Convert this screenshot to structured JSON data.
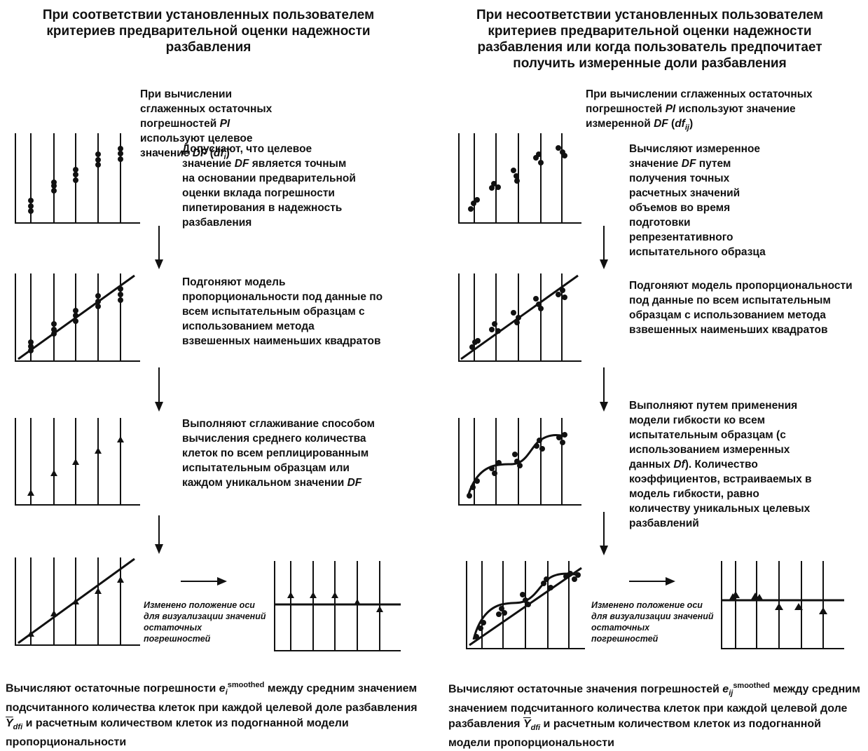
{
  "left": {
    "title": "При соответствии установленных пользователем критериев предварительной оценки надежности разбавления",
    "intro_parts": [
      "При вычислении сглаженных остаточных погрешностей ",
      "PI",
      " используют целевое значение ",
      "DF",
      " (",
      "df",
      "i",
      ")"
    ],
    "step1_parts": [
      "Допускают, что целевое значение ",
      "DF",
      " является точным на основании предварительной оценки вклада погрешности пипетирования в надежность разбавления"
    ],
    "step2": "Подгоняют модель пропорциональности под данные по всем испытательным образцам с использованием метода взвешенных наименьших квадратов",
    "step3_parts": [
      "Выполняют сглаживание способом вычисления среднего количества клеток по всем реплицированным испытательным образцам или каждом уникальном значении ",
      "DF"
    ],
    "note": "Изменено положение оси для визуализации значений остаточных погрешностей",
    "bottom_parts": [
      "Вычисляют остаточные погрешности ",
      "e",
      "i",
      "smoothed",
      " между средним значением подсчитанного количества клеток при каждой целевой доле разбавления ",
      "Y",
      "df",
      "i",
      " и расчетным количеством клеток из подогнанной модели пропорциональности"
    ]
  },
  "right": {
    "title": "При несоответствии установленных пользователем критериев предварительной оценки надежности разбавления или когда пользователь предпочитает получить измеренные доли разбавления",
    "intro_parts": [
      "При вычислении сглаженных остаточных погрешностей ",
      "PI",
      " используют значение измеренной ",
      "DF",
      " (",
      "df",
      "ij",
      ")"
    ],
    "step1_parts": [
      "Вычисляют измеренное значение ",
      "DF",
      " путем получения точных расчетных значений объемов во время подготовки репрезентативного испытательного образца"
    ],
    "step2": "Подгоняют модель пропорциональности под данные по всем испытательным образцам с использованием метода взвешенных наименьших квадратов",
    "step3_parts": [
      "Выполняют путем применения модели гибкости ко всем испытательным образцам (с использованием измеренных данных ",
      "Df",
      "). Количество коэффициентов, встраиваемых в модель гибкости, равно количеству уникальных целевых разбавлений"
    ],
    "note": "Изменено положение оси для визуализации значений остаточных погрешностей",
    "bottom_parts": [
      "Вычисляют остаточные значения погрешностей ",
      "e",
      "ij",
      "smoothed",
      " между средним значением подсчитанного количества клеток при каждой целевой доле разбавления ",
      "Y",
      "df",
      "i",
      " и расчетным количеством клеток из подогнанной модели пропорциональности"
    ]
  }
}
